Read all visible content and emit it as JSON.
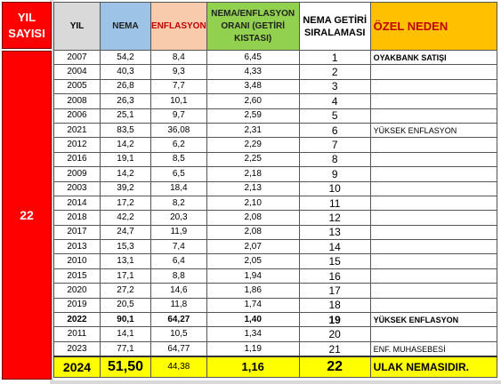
{
  "left": {
    "title_line1": "YIL",
    "title_line2": "SAYISI",
    "count": "22"
  },
  "headers": {
    "yil": "YIL",
    "nema": "NEMA",
    "enflasyon": "ENFLASYON",
    "oran": "NEMA/ENFLASYON ORANI (GETİRİ KISTASI)",
    "siralama": "NEMA GETİRİ SIRALAMASI",
    "ozel_neden": "ÖZEL NEDEN"
  },
  "rows": [
    {
      "yil": "2007",
      "nema": "54,2",
      "enf": "8,4",
      "oran": "6,45",
      "sira": "1",
      "not": "OYAKBANK SATIŞI",
      "bold_note": true
    },
    {
      "yil": "2004",
      "nema": "40,3",
      "enf": "9,3",
      "oran": "4,33",
      "sira": "2",
      "not": ""
    },
    {
      "yil": "2005",
      "nema": "26,8",
      "enf": "7,7",
      "oran": "3,48",
      "sira": "3",
      "not": ""
    },
    {
      "yil": "2008",
      "nema": "26,3",
      "enf": "10,1",
      "oran": "2,60",
      "sira": "4",
      "not": ""
    },
    {
      "yil": "2006",
      "nema": "25,1",
      "enf": "9,7",
      "oran": "2,59",
      "sira": "5",
      "not": ""
    },
    {
      "yil": "2021",
      "nema": "83,5",
      "enf": "36,08",
      "oran": "2,31",
      "sira": "6",
      "not": "YÜKSEK ENFLASYON"
    },
    {
      "yil": "2012",
      "nema": "14,2",
      "enf": "6,2",
      "oran": "2,29",
      "sira": "7",
      "not": ""
    },
    {
      "yil": "2016",
      "nema": "19,1",
      "enf": "8,5",
      "oran": "2,25",
      "sira": "8",
      "not": ""
    },
    {
      "yil": "2009",
      "nema": "14,2",
      "enf": "6,5",
      "oran": "2,18",
      "sira": "9",
      "not": ""
    },
    {
      "yil": "2003",
      "nema": "39,2",
      "enf": "18,4",
      "oran": "2,13",
      "sira": "10",
      "not": ""
    },
    {
      "yil": "2014",
      "nema": "17,2",
      "enf": "8,2",
      "oran": "2,10",
      "sira": "11",
      "not": ""
    },
    {
      "yil": "2018",
      "nema": "42,2",
      "enf": "20,3",
      "oran": "2,08",
      "sira": "12",
      "not": ""
    },
    {
      "yil": "2017",
      "nema": "24,7",
      "enf": "11,9",
      "oran": "2,08",
      "sira": "13",
      "not": ""
    },
    {
      "yil": "2013",
      "nema": "15,3",
      "enf": "7,4",
      "oran": "2,07",
      "sira": "14",
      "not": ""
    },
    {
      "yil": "2010",
      "nema": "13,1",
      "enf": "6,4",
      "oran": "2,05",
      "sira": "15",
      "not": ""
    },
    {
      "yil": "2015",
      "nema": "17,1",
      "enf": "8,8",
      "oran": "1,94",
      "sira": "16",
      "not": ""
    },
    {
      "yil": "2020",
      "nema": "27,2",
      "enf": "14,6",
      "oran": "1,86",
      "sira": "17",
      "not": ""
    },
    {
      "yil": "2019",
      "nema": "20,5",
      "enf": "11,8",
      "oran": "1,74",
      "sira": "18",
      "not": ""
    },
    {
      "yil": "2022",
      "nema": "90,1",
      "enf": "64,27",
      "oran": "1,40",
      "sira": "19",
      "not": "YÜKSEK ENFLASYON",
      "bold_row": true
    },
    {
      "yil": "2011",
      "nema": "14,1",
      "enf": "10,5",
      "oran": "1,34",
      "sira": "20",
      "not": ""
    },
    {
      "yil": "2023",
      "nema": "77,1",
      "enf": "64,77",
      "oran": "1,19",
      "sira": "21",
      "not": "ENF. MUHASEBESİ"
    }
  ],
  "total": {
    "yil": "2024",
    "nema": "51,50",
    "enf": "44,38",
    "oran": "1,16",
    "sira": "22",
    "not": "ULAK NEMASIDIR."
  }
}
